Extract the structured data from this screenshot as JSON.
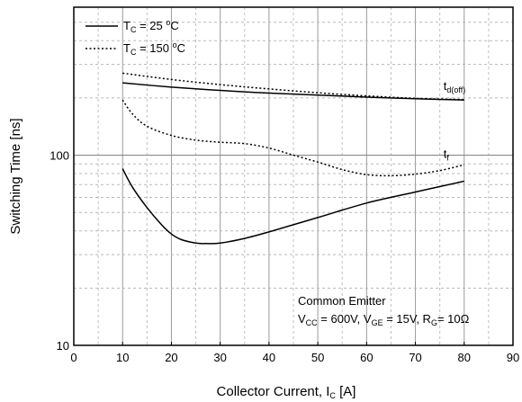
{
  "chart_data": {
    "type": "line",
    "xlabel": "Collector Current, I",
    "xlabel_sub": "C",
    "xlabel_unit": "[A]",
    "ylabel": "Switching Time [ns]",
    "xlim": [
      0,
      90
    ],
    "ylim": [
      10,
      600
    ],
    "yscale": "log",
    "x_ticks": [
      0,
      10,
      20,
      30,
      40,
      50,
      60,
      70,
      80,
      90
    ],
    "y_ticks": [
      10,
      100
    ],
    "y_tick_labels": [
      "10",
      "100"
    ],
    "grid": true,
    "legend_position": "top-left",
    "legend": [
      {
        "main": "T",
        "sub": "C",
        "rest": " = 25 °C",
        "style": "solid"
      },
      {
        "main": "T",
        "sub": "C",
        "rest": " = 150 °C",
        "style": "dotted"
      }
    ],
    "annotations": {
      "line1": "Common Emitter",
      "line2": [
        {
          "t": "V"
        },
        {
          "t": "CC",
          "sub": true
        },
        {
          "t": " = 600V, V"
        },
        {
          "t": "GE",
          "sub": true
        },
        {
          "t": " = 15V, R"
        },
        {
          "t": "G",
          "sub": true
        },
        {
          "t": "= 10Ω"
        }
      ]
    },
    "curve_labels": [
      {
        "main": "t",
        "sub": "d(off)",
        "x": 80,
        "y": 215
      },
      {
        "main": "t",
        "sub": "f",
        "x": 80,
        "y": 95
      }
    ],
    "series": [
      {
        "name": "td(off) 25°C",
        "style": "solid",
        "x": [
          10,
          20,
          30,
          40,
          50,
          60,
          70,
          80
        ],
        "y": [
          240,
          228,
          219,
          212,
          207,
          202,
          198,
          195
        ]
      },
      {
        "name": "td(off) 150°C",
        "style": "dotted",
        "x": [
          10,
          20,
          30,
          40,
          50,
          60,
          70,
          80
        ],
        "y": [
          270,
          250,
          235,
          223,
          213,
          205,
          199,
          196
        ]
      },
      {
        "name": "tf 25°C",
        "style": "solid",
        "x": [
          10,
          12,
          15,
          18,
          20,
          22,
          25,
          27,
          30,
          35,
          40,
          50,
          60,
          70,
          80
        ],
        "y": [
          85,
          68,
          53,
          43,
          38.5,
          36,
          34.5,
          34.3,
          34.5,
          36.5,
          39.5,
          47,
          56,
          64,
          73
        ]
      },
      {
        "name": "tf 150°C",
        "style": "dotted",
        "x": [
          10,
          12,
          15,
          20,
          25,
          30,
          35,
          40,
          45,
          50,
          55,
          60,
          65,
          70,
          75,
          80
        ],
        "y": [
          195,
          165,
          142,
          127,
          120,
          117,
          115,
          109,
          100,
          92,
          84,
          79,
          78,
          79.5,
          83,
          89
        ]
      }
    ]
  }
}
